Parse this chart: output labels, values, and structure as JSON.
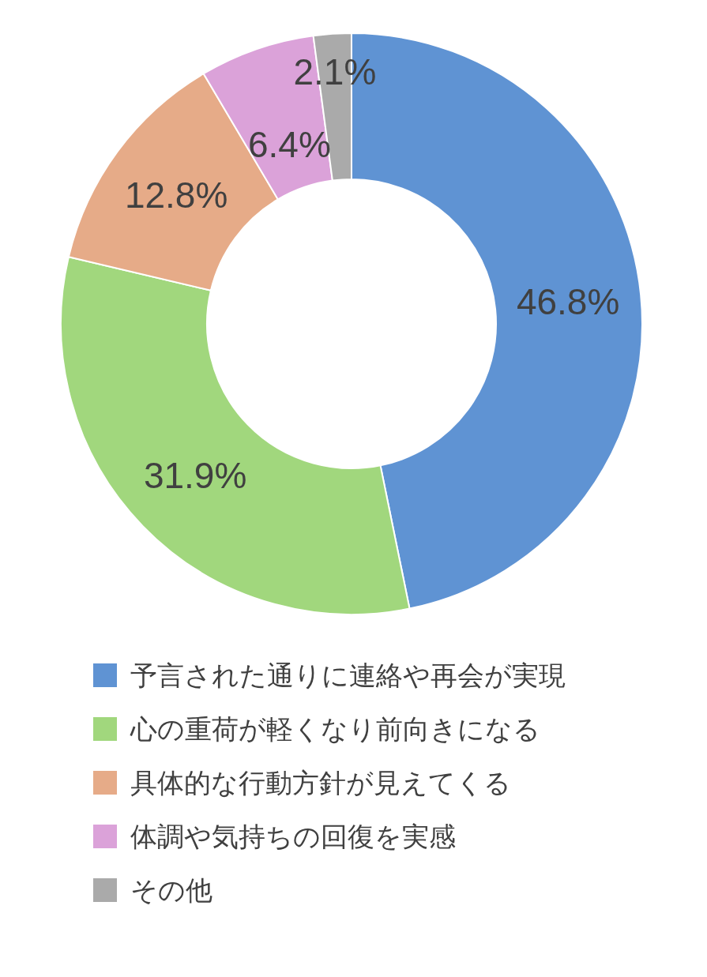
{
  "chart_data": {
    "type": "donut",
    "categories": [
      "予言された通りに連絡や再会が実現",
      "心の重荷が軽くなり前向きになる",
      "具体的な行動方針が見えてくる",
      "体調や気持ちの回復を実感",
      "その他"
    ],
    "values": [
      46.8,
      31.9,
      12.8,
      6.4,
      2.1
    ],
    "colors": [
      "#5f93d3",
      "#a1d77d",
      "#e6ab88",
      "#dba2d9",
      "#aaaaaa"
    ],
    "value_labels": [
      "46.8%",
      "31.9%",
      "12.8%",
      "6.4%",
      "2.1%"
    ],
    "legend": "bottom"
  }
}
